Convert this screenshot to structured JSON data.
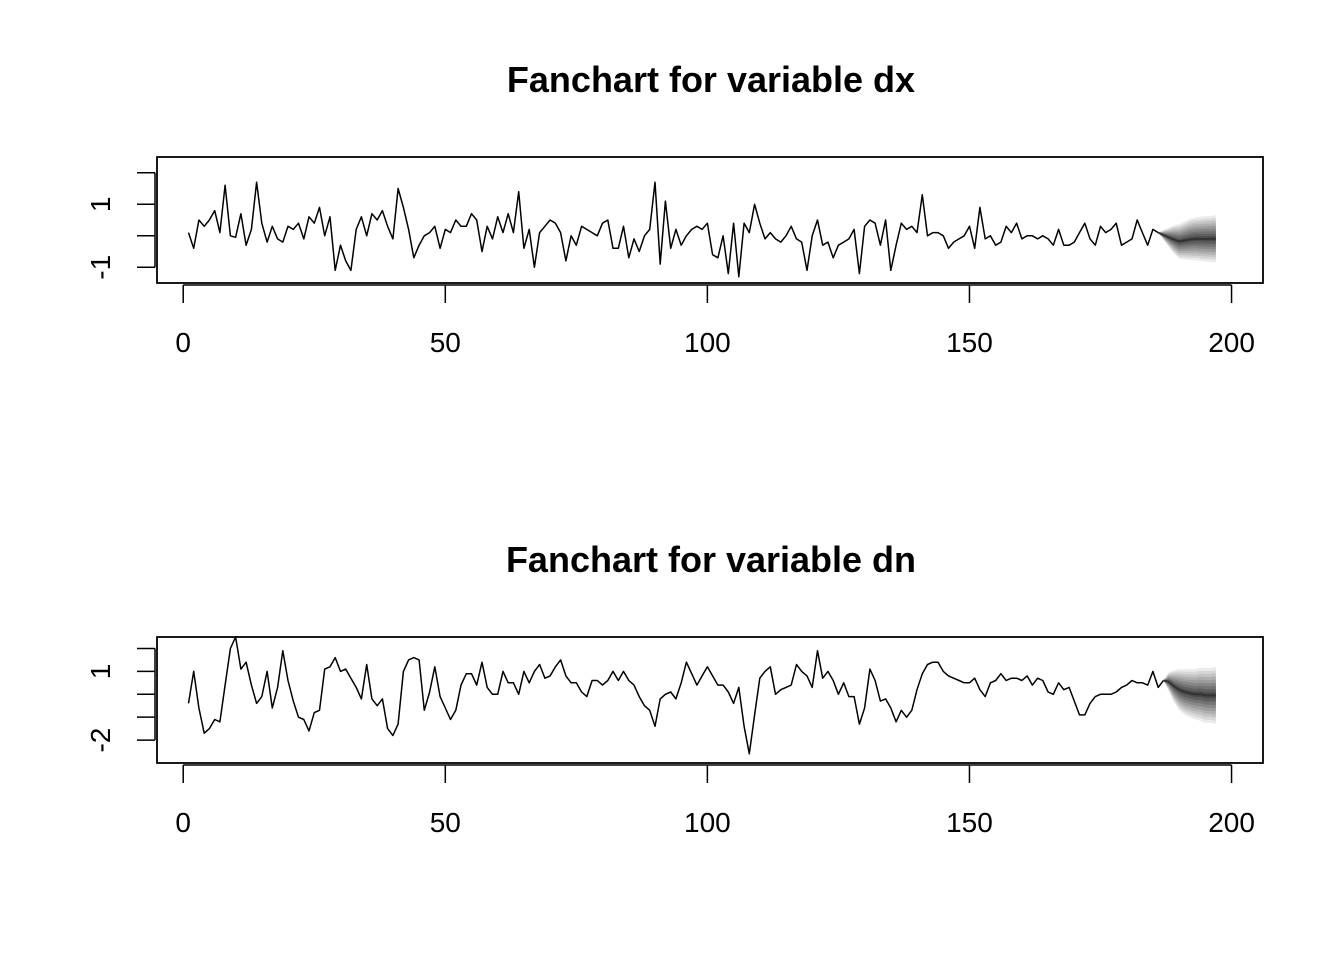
{
  "chart_data": [
    {
      "type": "line",
      "title": "Fanchart for variable dx",
      "xlim": [
        -5,
        206
      ],
      "ylim": [
        -1.5,
        2.5
      ],
      "xticks": [
        0,
        50,
        100,
        150,
        200
      ],
      "xtick_labels": [
        "0",
        "50",
        "100",
        "150",
        "200"
      ],
      "yticks": [
        -1,
        0,
        1,
        2
      ],
      "ytick_labels": [
        "-1",
        "",
        "1",
        ""
      ],
      "x_start": 1,
      "y": [
        0.1,
        -0.4,
        0.5,
        0.3,
        0.5,
        0.8,
        0.1,
        1.6,
        0.0,
        -0.05,
        0.7,
        -0.3,
        0.2,
        1.7,
        0.4,
        -0.2,
        0.3,
        -0.1,
        -0.2,
        0.3,
        0.2,
        0.4,
        -0.1,
        0.6,
        0.4,
        0.9,
        0.0,
        0.6,
        -1.1,
        -0.3,
        -0.8,
        -1.1,
        0.2,
        0.6,
        0.0,
        0.7,
        0.5,
        0.8,
        0.3,
        -0.1,
        1.5,
        0.9,
        0.2,
        -0.7,
        -0.3,
        0.0,
        0.1,
        0.3,
        -0.4,
        0.2,
        0.1,
        0.5,
        0.3,
        0.3,
        0.7,
        0.5,
        -0.5,
        0.3,
        -0.1,
        0.6,
        0.1,
        0.7,
        0.1,
        1.4,
        -0.4,
        0.2,
        -1.0,
        0.1,
        0.3,
        0.5,
        0.4,
        0.1,
        -0.8,
        0.0,
        -0.3,
        0.3,
        0.2,
        0.1,
        0.0,
        0.4,
        0.5,
        -0.4,
        -0.4,
        0.3,
        -0.7,
        -0.1,
        -0.5,
        0.0,
        0.2,
        1.7,
        -0.9,
        1.1,
        -0.4,
        0.2,
        -0.3,
        0.0,
        0.2,
        0.3,
        0.2,
        0.4,
        -0.6,
        -0.7,
        0.0,
        -1.2,
        0.4,
        -1.3,
        0.4,
        0.1,
        1.0,
        0.4,
        -0.1,
        0.1,
        -0.1,
        -0.2,
        0.0,
        0.3,
        -0.1,
        -0.2,
        -1.1,
        0.0,
        0.5,
        -0.3,
        -0.2,
        -0.7,
        -0.3,
        -0.2,
        -0.1,
        0.2,
        -1.2,
        0.3,
        0.5,
        0.4,
        -0.3,
        0.5,
        -1.1,
        -0.3,
        0.4,
        0.2,
        0.3,
        0.1,
        1.3,
        0.0,
        0.1,
        0.1,
        0.0,
        -0.4,
        -0.2,
        -0.1,
        0.0,
        0.3,
        -0.4,
        0.9,
        -0.1,
        0.0,
        -0.3,
        -0.2,
        0.3,
        0.1,
        0.4,
        -0.1,
        0.0,
        0.0,
        -0.1,
        0.0,
        -0.1,
        -0.3,
        0.2,
        -0.3,
        -0.3,
        -0.2,
        0.1,
        0.4,
        -0.1,
        -0.3,
        0.3,
        0.1,
        0.2,
        0.4,
        -0.3,
        -0.2,
        -0.1,
        0.5,
        0.1,
        -0.3,
        0.2,
        0.1
      ],
      "forecast": {
        "x_start": 188,
        "mean": [
          -0.05,
          -0.12,
          -0.18,
          -0.15,
          -0.12,
          -0.1,
          -0.1,
          -0.1,
          -0.1,
          -0.1
        ],
        "spread": [
          0.3,
          0.45,
          0.55,
          0.6,
          0.65,
          0.68,
          0.7,
          0.72,
          0.73,
          0.75
        ]
      }
    },
    {
      "type": "line",
      "title": "Fanchart for variable dn",
      "xlim": [
        -5,
        206
      ],
      "ylim": [
        -3.0,
        2.5
      ],
      "xticks": [
        0,
        50,
        100,
        150,
        200
      ],
      "xtick_labels": [
        "0",
        "50",
        "100",
        "150",
        "200"
      ],
      "yticks": [
        -2,
        -1,
        0,
        1,
        2
      ],
      "ytick_labels": [
        "-2",
        "",
        "",
        "1",
        ""
      ],
      "x_start": 1,
      "y": [
        -0.4,
        1.0,
        -0.6,
        -1.7,
        -1.5,
        -1.1,
        -1.2,
        0.4,
        2.0,
        2.5,
        1.1,
        1.4,
        0.4,
        -0.4,
        -0.1,
        1.0,
        -0.6,
        0.3,
        1.9,
        0.6,
        -0.3,
        -1.0,
        -1.1,
        -1.6,
        -0.8,
        -0.7,
        1.1,
        1.2,
        1.6,
        1.0,
        1.1,
        0.7,
        0.3,
        -0.2,
        1.3,
        -0.2,
        -0.5,
        -0.2,
        -1.5,
        -1.8,
        -1.3,
        1.0,
        1.5,
        1.6,
        1.5,
        -0.7,
        0.1,
        1.2,
        -0.1,
        -0.6,
        -1.1,
        -0.7,
        0.4,
        0.9,
        0.9,
        0.4,
        1.4,
        0.3,
        0.0,
        0.0,
        1.0,
        0.5,
        0.5,
        0.0,
        1.0,
        0.5,
        1.0,
        1.3,
        0.7,
        0.8,
        1.2,
        1.5,
        0.8,
        0.5,
        0.5,
        0.1,
        -0.1,
        0.6,
        0.6,
        0.4,
        0.6,
        1.0,
        0.6,
        1.0,
        0.6,
        0.4,
        -0.1,
        -0.5,
        -0.7,
        -1.4,
        -0.2,
        0.0,
        0.1,
        -0.2,
        0.5,
        1.4,
        0.9,
        0.4,
        0.8,
        1.2,
        0.8,
        0.4,
        0.4,
        0.1,
        -0.4,
        0.3,
        -1.4,
        -2.6,
        -0.9,
        0.7,
        1.0,
        1.2,
        0.0,
        0.2,
        0.3,
        0.4,
        1.3,
        1.0,
        0.8,
        0.3,
        1.9,
        0.7,
        1.0,
        0.6,
        0.0,
        0.5,
        -0.1,
        -0.1,
        -1.3,
        -0.6,
        1.1,
        0.6,
        -0.3,
        -0.2,
        -0.6,
        -1.2,
        -0.7,
        -1.0,
        -0.7,
        0.2,
        0.9,
        1.3,
        1.4,
        1.4,
        1.0,
        0.8,
        0.7,
        0.6,
        0.5,
        0.5,
        0.7,
        0.2,
        -0.1,
        0.5,
        0.6,
        0.9,
        0.6,
        0.7,
        0.7,
        0.6,
        0.8,
        0.4,
        0.7,
        0.6,
        0.1,
        0.0,
        0.5,
        0.2,
        0.3,
        -0.3,
        -0.9,
        -0.9,
        -0.4,
        -0.1,
        0.0,
        0.0,
        0.0,
        0.1,
        0.3,
        0.4,
        0.6,
        0.5,
        0.5,
        0.4,
        1.0,
        0.3,
        0.6
      ],
      "forecast": {
        "x_start": 188,
        "mean": [
          0.55,
          0.35,
          0.2,
          0.1,
          0.05,
          0.0,
          0.0,
          -0.05,
          -0.05,
          -0.05
        ],
        "spread": [
          0.4,
          0.7,
          0.9,
          1.0,
          1.05,
          1.1,
          1.15,
          1.2,
          1.2,
          1.25
        ]
      }
    }
  ],
  "colors": {
    "line": "#000000",
    "fan_light": "#e8e8e8",
    "fan_dark": "#555555"
  }
}
